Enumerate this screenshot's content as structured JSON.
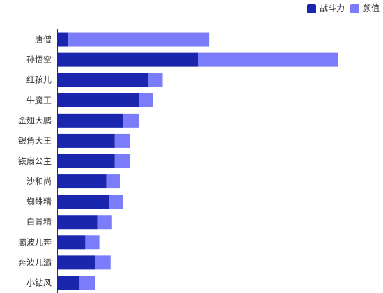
{
  "chart_data": {
    "type": "bar",
    "orientation": "horizontal",
    "stacked": true,
    "title": "",
    "xlabel": "",
    "ylabel": "",
    "grid": false,
    "legend_position": "top-right",
    "categories": [
      "唐僧",
      "孙悟空",
      "红孩儿",
      "牛魔王",
      "金翅大鹏",
      "银角大王",
      "铁扇公主",
      "沙和尚",
      "蜘蛛精",
      "白骨精",
      "灞波儿奔",
      "奔波儿灞",
      "小钻风"
    ],
    "series": [
      {
        "name": "战斗力",
        "color": "#1a26ae",
        "values": [
          8,
          100,
          65,
          58,
          47,
          41,
          41,
          35,
          37,
          29,
          20,
          27,
          16
        ]
      },
      {
        "name": "颜值",
        "color": "#7a7cfa",
        "values": [
          100,
          100,
          10,
          10,
          11,
          11,
          11,
          10,
          10,
          10,
          10,
          11,
          11
        ]
      }
    ]
  }
}
